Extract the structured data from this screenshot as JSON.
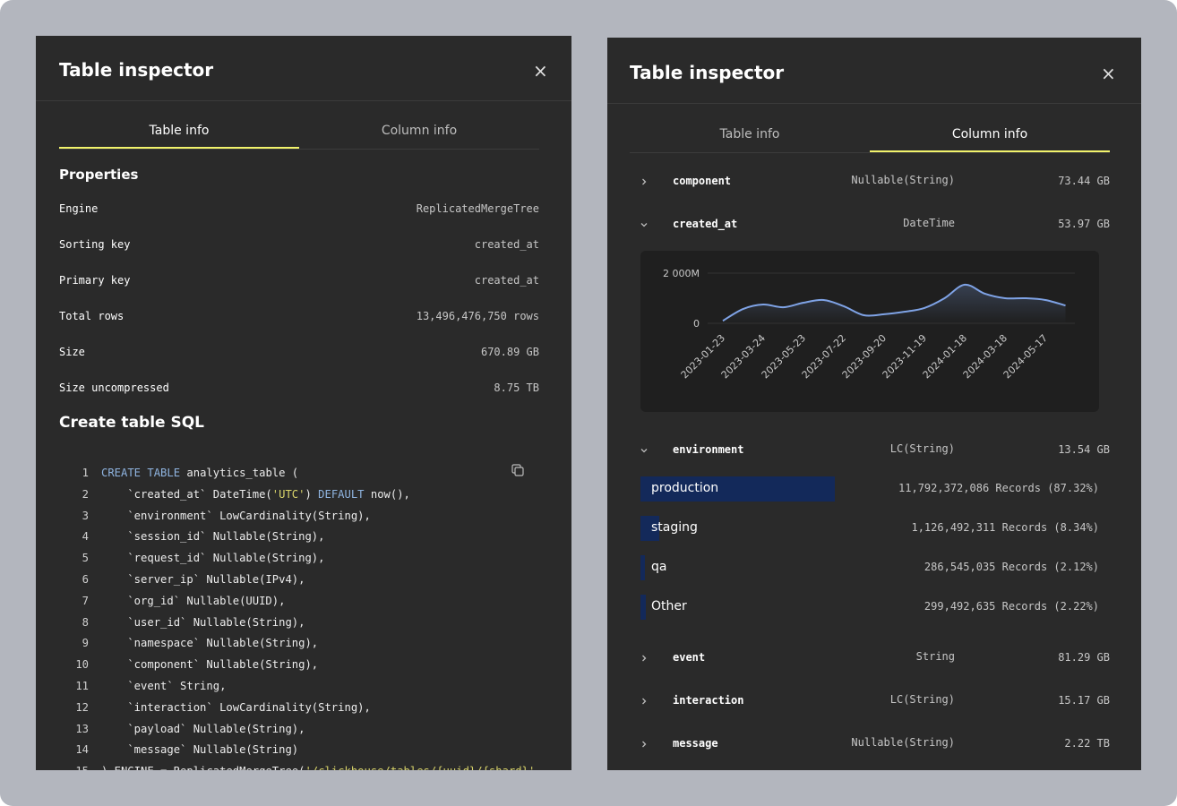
{
  "left": {
    "title": "Table inspector",
    "close": "×",
    "tabs": [
      "Table info",
      "Column info"
    ],
    "active_tab": 0,
    "properties_heading": "Properties",
    "properties": [
      {
        "label": "Engine",
        "value": "ReplicatedMergeTree"
      },
      {
        "label": "Sorting key",
        "value": "created_at"
      },
      {
        "label": "Primary key",
        "value": "created_at"
      },
      {
        "label": "Total rows",
        "value": "13,496,476,750 rows"
      },
      {
        "label": "Size",
        "value": "670.89 GB"
      },
      {
        "label": "Size uncompressed",
        "value": "8.75 TB"
      }
    ],
    "sql_heading": "Create table SQL",
    "code": [
      {
        "number": 1,
        "segments": [
          {
            "text": "CREATE TABLE",
            "color": "#8fb4e0"
          },
          {
            "text": " analytics_table ("
          }
        ]
      },
      {
        "number": 2,
        "segments": [
          {
            "text": "    `created_at` DateTime("
          },
          {
            "text": "'UTC'",
            "color": "#d9d46a"
          },
          {
            "text": ") "
          },
          {
            "text": "DEFAULT",
            "color": "#8fb4e0"
          },
          {
            "text": " now(),"
          }
        ]
      },
      {
        "number": 3,
        "segments": [
          {
            "text": "    `environment` LowCardinality(String),"
          }
        ]
      },
      {
        "number": 4,
        "segments": [
          {
            "text": "    `session_id` Nullable(String),"
          }
        ]
      },
      {
        "number": 5,
        "segments": [
          {
            "text": "    `request_id` Nullable(String),"
          }
        ]
      },
      {
        "number": 6,
        "segments": [
          {
            "text": "    `server_ip` Nullable(IPv4),"
          }
        ]
      },
      {
        "number": 7,
        "segments": [
          {
            "text": "    `org_id` Nullable(UUID),"
          }
        ]
      },
      {
        "number": 8,
        "segments": [
          {
            "text": "    `user_id` Nullable(String),"
          }
        ]
      },
      {
        "number": 9,
        "segments": [
          {
            "text": "    `namespace` Nullable(String),"
          }
        ]
      },
      {
        "number": 10,
        "segments": [
          {
            "text": "    `component` Nullable(String),"
          }
        ]
      },
      {
        "number": 11,
        "segments": [
          {
            "text": "    `event` String,"
          }
        ]
      },
      {
        "number": 12,
        "segments": [
          {
            "text": "    `interaction` LowCardinality(String),"
          }
        ]
      },
      {
        "number": 13,
        "segments": [
          {
            "text": "    `payload` Nullable(String),"
          }
        ]
      },
      {
        "number": 14,
        "segments": [
          {
            "text": "    `message` Nullable(String)"
          }
        ]
      },
      {
        "number": 15,
        "segments": [
          {
            "text": ") ENGINE = ReplicatedMergeTree("
          },
          {
            "text": "'/clickhouse/tables/{uuid}/{shard}'",
            "color": "#d9d46a"
          }
        ]
      }
    ]
  },
  "right": {
    "title": "Table inspector",
    "close": "×",
    "tabs": [
      "Table info",
      "Column info"
    ],
    "active_tab": 1,
    "columns": [
      {
        "name": "component",
        "type": "Nullable(String)",
        "size": "73.44 GB",
        "expanded": false
      },
      {
        "name": "created_at",
        "type": "DateTime",
        "size": "53.97 GB",
        "expanded": true,
        "chart": {
          "type": "line",
          "color": "#7fa3e6",
          "categories": [
            "2023-01-23",
            null,
            "2023-03-24",
            null,
            "2023-05-23",
            null,
            "2023-07-22",
            null,
            "2023-09-20",
            null,
            "2023-11-19",
            null,
            "2024-01-18",
            null,
            "2024-03-18",
            null,
            "2024-05-17",
            null
          ],
          "values": [
            100,
            570,
            750,
            640,
            820,
            930,
            680,
            320,
            360,
            460,
            610,
            1000,
            1540,
            1180,
            1000,
            1000,
            930,
            710
          ],
          "ylim": [
            0,
            2000
          ],
          "yticks": [
            0,
            {
              "value": 2000,
              "label": "2 000M"
            }
          ],
          "grid": true
        }
      },
      {
        "name": "environment",
        "type": "LC(String)",
        "size": "13.54 GB",
        "expanded": true,
        "top_values": [
          {
            "label": "production",
            "records": "11,792,372,086 Records (87.32%)",
            "percent": 87.32
          },
          {
            "label": "staging",
            "records": "1,126,492,311 Records (8.34%)",
            "percent": 8.34
          },
          {
            "label": "qa",
            "records": "286,545,035 Records (2.12%)",
            "percent": 2.12
          },
          {
            "label": "Other",
            "records": "299,492,635 Records (2.22%)",
            "percent": 2.22
          }
        ]
      },
      {
        "name": "event",
        "type": "String",
        "size": "81.29 GB",
        "expanded": false
      },
      {
        "name": "interaction",
        "type": "LC(String)",
        "size": "15.17 GB",
        "expanded": false
      },
      {
        "name": "message",
        "type": "Nullable(String)",
        "size": "2.22 TB",
        "expanded": false
      }
    ]
  }
}
